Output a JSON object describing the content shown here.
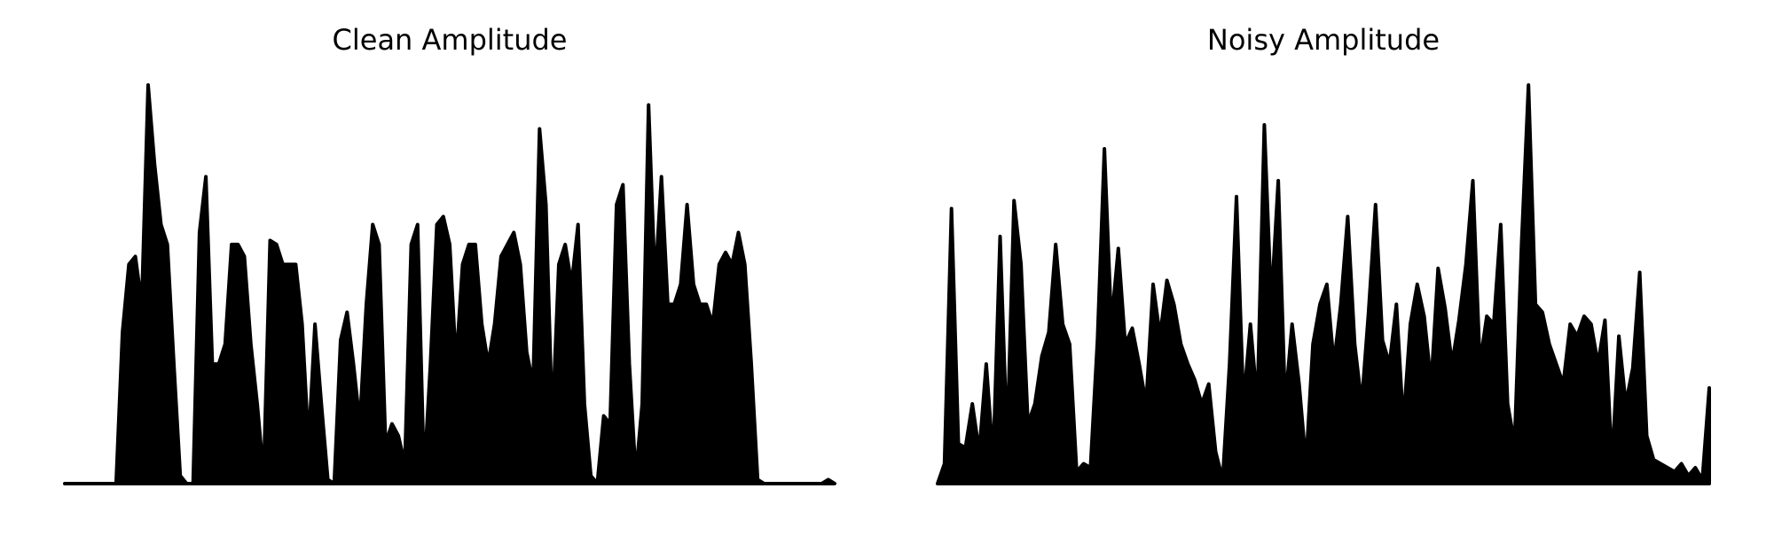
{
  "chart_data": [
    {
      "type": "area",
      "title": "Clean Amplitude",
      "color": "#000000",
      "ylim": [
        0,
        1
      ],
      "values": [
        0,
        0,
        0,
        0,
        0,
        0,
        0,
        0,
        0,
        0.38,
        0.55,
        0.57,
        0.45,
        1.0,
        0.8,
        0.65,
        0.6,
        0.3,
        0.02,
        0,
        0,
        0.63,
        0.77,
        0.3,
        0.3,
        0.35,
        0.6,
        0.6,
        0.57,
        0.35,
        0.2,
        0.02,
        0.61,
        0.6,
        0.55,
        0.55,
        0.55,
        0.4,
        0.1,
        0.4,
        0.2,
        0.01,
        0,
        0.36,
        0.43,
        0.3,
        0.15,
        0.45,
        0.65,
        0.6,
        0.1,
        0.15,
        0.12,
        0.05,
        0.6,
        0.65,
        0.02,
        0.3,
        0.65,
        0.67,
        0.6,
        0.3,
        0.55,
        0.6,
        0.6,
        0.4,
        0.3,
        0.4,
        0.57,
        0.6,
        0.63,
        0.55,
        0.33,
        0.25,
        0.89,
        0.7,
        0.15,
        0.55,
        0.6,
        0.5,
        0.65,
        0.2,
        0.02,
        0,
        0.17,
        0.15,
        0.7,
        0.75,
        0.3,
        0.02,
        0.2,
        0.95,
        0.5,
        0.77,
        0.45,
        0.45,
        0.5,
        0.7,
        0.5,
        0.45,
        0.45,
        0.4,
        0.55,
        0.58,
        0.55,
        0.63,
        0.55,
        0.3,
        0.01,
        0,
        0,
        0,
        0,
        0,
        0,
        0,
        0,
        0,
        0,
        0.01,
        0
      ]
    },
    {
      "type": "area",
      "title": "Noisy Amplitude",
      "color": "#000000",
      "ylim": [
        0,
        1
      ],
      "values": [
        0,
        0.05,
        0.69,
        0.1,
        0.09,
        0.2,
        0.08,
        0.3,
        0.06,
        0.62,
        0.1,
        0.71,
        0.55,
        0.15,
        0.2,
        0.32,
        0.38,
        0.6,
        0.4,
        0.35,
        0.03,
        0.05,
        0.04,
        0.36,
        0.84,
        0.4,
        0.59,
        0.35,
        0.39,
        0.3,
        0.2,
        0.5,
        0.37,
        0.51,
        0.45,
        0.35,
        0.3,
        0.26,
        0.2,
        0.25,
        0.08,
        0.01,
        0.3,
        0.72,
        0.2,
        0.4,
        0.2,
        0.9,
        0.45,
        0.76,
        0.2,
        0.4,
        0.25,
        0.05,
        0.35,
        0.45,
        0.5,
        0.3,
        0.45,
        0.67,
        0.35,
        0.2,
        0.43,
        0.7,
        0.36,
        0.3,
        0.45,
        0.15,
        0.4,
        0.5,
        0.42,
        0.25,
        0.54,
        0.44,
        0.3,
        0.41,
        0.55,
        0.76,
        0.3,
        0.42,
        0.4,
        0.65,
        0.2,
        0.1,
        0.6,
        1.0,
        0.45,
        0.43,
        0.35,
        0.3,
        0.25,
        0.4,
        0.37,
        0.42,
        0.4,
        0.3,
        0.41,
        0.05,
        0.37,
        0.2,
        0.29,
        0.53,
        0.12,
        0.06,
        0.05,
        0.04,
        0.03,
        0.05,
        0.02,
        0.04,
        0.01,
        0.24
      ]
    }
  ]
}
